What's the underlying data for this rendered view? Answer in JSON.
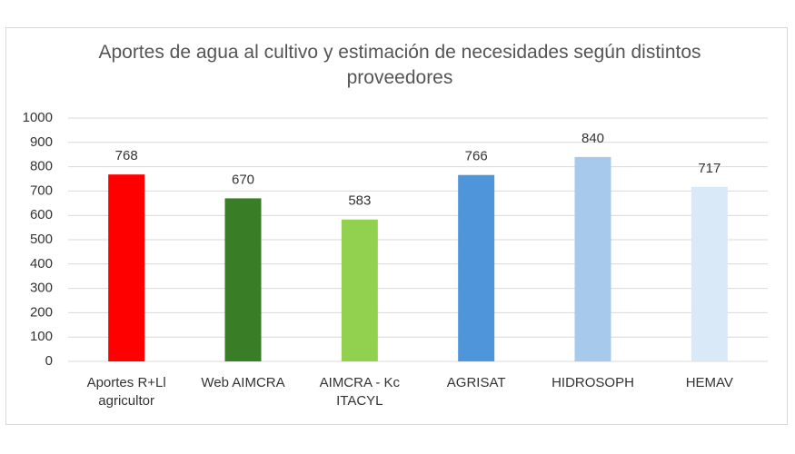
{
  "chart_data": {
    "type": "bar",
    "title": "Aportes de agua al cultivo y estimación de necesidades según distintos proveedores",
    "categories": [
      "Aportes R+Ll agricultor",
      "Web AIMCRA",
      "AIMCRA - Kc ITACYL",
      "AGRISAT",
      "HIDROSOPH",
      "HEMAV"
    ],
    "values": [
      768,
      670,
      583,
      766,
      840,
      717
    ],
    "colors": [
      "#ff0000",
      "#3a7d27",
      "#92d050",
      "#4e95d9",
      "#a6c9ec",
      "#dae9f8"
    ],
    "ylim": [
      0,
      1000
    ],
    "yticks": [
      0,
      100,
      200,
      300,
      400,
      500,
      600,
      700,
      800,
      900,
      1000
    ],
    "grid": true
  }
}
